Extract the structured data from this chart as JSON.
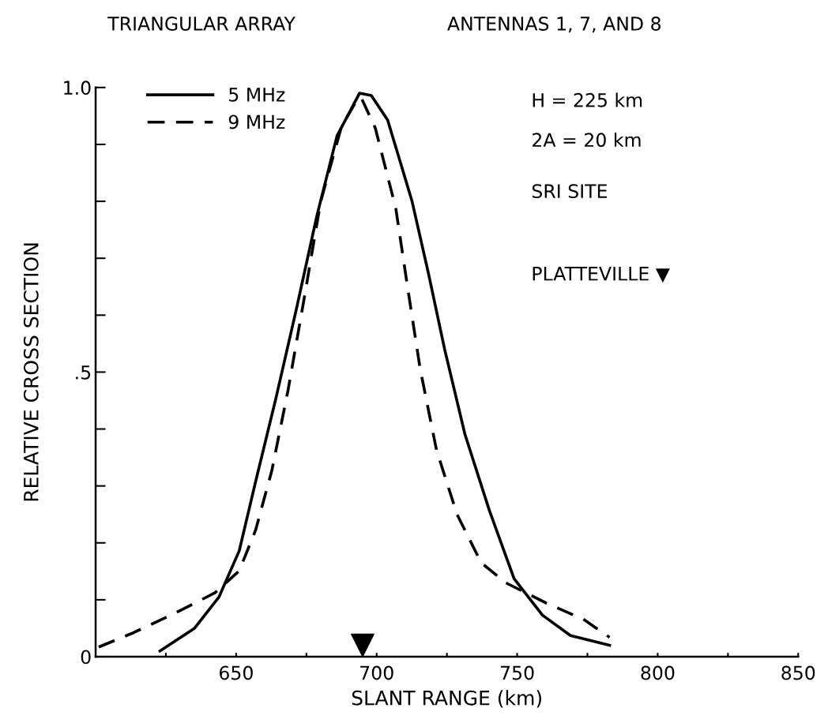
{
  "chart_data": {
    "type": "line",
    "title": "TRIANGULAR ARRAY",
    "subtitle": "ANTENNAS 1, 7, AND 8",
    "xlabel": "SLANT RANGE (km)",
    "ylabel": "RELATIVE CROSS SECTION",
    "xlim": [
      600,
      850
    ],
    "ylim": [
      0,
      1.0
    ],
    "xticks": [
      {
        "value": 625,
        "label": null
      },
      650,
      {
        "value": 675,
        "label": null
      },
      700,
      {
        "value": 725,
        "label": null
      },
      750,
      {
        "value": 775,
        "label": null
      },
      800,
      {
        "value": 825,
        "label": null
      },
      850
    ],
    "yticks": [
      {
        "value": 0,
        "label": "0"
      },
      {
        "value": 0.1,
        "label": null
      },
      {
        "value": 0.2,
        "label": null
      },
      {
        "value": 0.3,
        "label": null
      },
      {
        "value": 0.4,
        "label": null
      },
      {
        "value": 0.5,
        "label": ".5"
      },
      {
        "value": 0.6,
        "label": null
      },
      {
        "value": 0.7,
        "label": null
      },
      {
        "value": 0.8,
        "label": null
      },
      {
        "value": 0.9,
        "label": null
      },
      {
        "value": 1.0,
        "label": "1.0"
      }
    ],
    "grid": false,
    "legend": "top left",
    "marker": "none",
    "series": [
      {
        "name": "5 MHz",
        "color": "#000000",
        "line_style": "solid",
        "x": [
          622.9,
          635.2,
          643.9,
          651.1,
          656.9,
          664.2,
          671.4,
          678.7,
          685.9,
          693.9,
          698.1,
          703.9,
          712.6,
          718.4,
          724.2,
          731.4,
          740.1,
          748.9,
          759,
          769,
          782.9
        ],
        "values": [
          0.01,
          0.05,
          0.105,
          0.186,
          0.307,
          0.455,
          0.61,
          0.774,
          0.915,
          0.99,
          0.986,
          0.943,
          0.8,
          0.674,
          0.54,
          0.391,
          0.257,
          0.137,
          0.073,
          0.037,
          0.02
        ]
      },
      {
        "name": "9 MHz",
        "color": "#000000",
        "line_style": "dashed",
        "x": [
          601.1,
          613.4,
          628,
          642.4,
          651.1,
          656.9,
          662.7,
          668.5,
          674.3,
          680.1,
          687.4,
          693.2,
          694.5,
          699.5,
          706.8,
          711.1,
          715.5,
          721.3,
          728.6,
          737.2,
          745.9,
          760.4,
          773.5,
          782.9
        ],
        "values": [
          0.017,
          0.042,
          0.076,
          0.112,
          0.151,
          0.222,
          0.327,
          0.469,
          0.632,
          0.8,
          0.93,
          0.98,
          0.982,
          0.929,
          0.788,
          0.646,
          0.505,
          0.363,
          0.25,
          0.165,
          0.13,
          0.094,
          0.066,
          0.034
        ]
      },
      {
        "type": "scatter",
        "color": "#000000",
        "marker": "triangle",
        "x": [
          695
        ],
        "values": [
          0.02
        ]
      }
    ],
    "annotations": [
      "H = 225 km",
      "2A = 20 km",
      "SRI SITE",
      "PLATTEVILLE ▼"
    ]
  }
}
